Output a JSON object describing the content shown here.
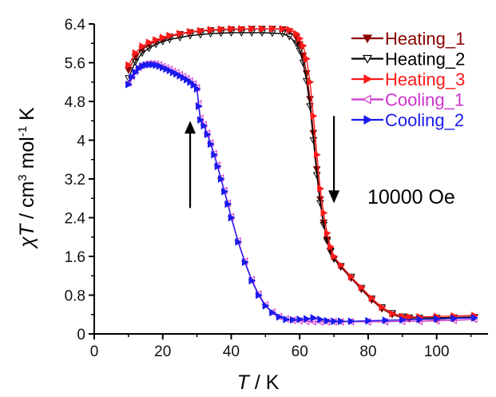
{
  "chart_data": {
    "type": "line",
    "title": "",
    "xlabel_italic": "T",
    "xlabel_rest": " / K",
    "ylabel_chi": "χ",
    "ylabel_T": "T",
    "ylabel_unit": " / cm",
    "ylabel_sup3": "3",
    "ylabel_mol": " mol",
    "ylabel_supm1": "-1",
    "ylabel_K": " K",
    "xlim": [
      0,
      115
    ],
    "ylim": [
      0,
      6.4
    ],
    "xticks": [
      0,
      20,
      40,
      60,
      80,
      100
    ],
    "yticks": [
      "0",
      "0.8",
      "1.6",
      "2.4",
      "3.2",
      "4",
      "4.8",
      "5.6",
      "6.4"
    ],
    "annotation": "10000 Oe",
    "arrows": [
      {
        "direction": "up",
        "x": 28,
        "y_from": 2.6,
        "y_to": 4.4
      },
      {
        "direction": "down",
        "x": 70,
        "y_from": 4.5,
        "y_to": 2.7
      }
    ],
    "legend_position": "top-right",
    "series": [
      {
        "name": "Heating_1",
        "color": "#8b0000",
        "marker": "triangle-down",
        "x": [
          10,
          12,
          14,
          16,
          18,
          20,
          22,
          25,
          28,
          31,
          34,
          37,
          40,
          43,
          46,
          49,
          52,
          55,
          57,
          59,
          60,
          61,
          62,
          63,
          64,
          65,
          66,
          67,
          68,
          69,
          70,
          72,
          75,
          78,
          81,
          84,
          87,
          90,
          92,
          95,
          100,
          105,
          111
        ],
        "y": [
          5.45,
          5.72,
          5.88,
          5.97,
          6.04,
          6.09,
          6.14,
          6.19,
          6.23,
          6.25,
          6.27,
          6.28,
          6.29,
          6.29,
          6.3,
          6.3,
          6.3,
          6.29,
          6.25,
          6.12,
          5.98,
          5.75,
          5.38,
          4.85,
          4.15,
          3.4,
          2.78,
          2.3,
          1.95,
          1.72,
          1.55,
          1.38,
          1.15,
          0.92,
          0.7,
          0.52,
          0.4,
          0.33,
          0.31,
          0.3,
          0.3,
          0.32,
          0.34
        ]
      },
      {
        "name": "Heating_2",
        "color": "#000000",
        "marker": "triangle-down",
        "x": [
          10,
          12,
          14,
          16,
          18,
          20,
          22,
          25,
          28,
          31,
          34,
          37,
          40,
          43,
          46,
          49,
          52,
          55,
          57,
          59,
          60,
          61,
          62,
          63,
          64,
          65,
          66,
          67,
          68,
          69,
          70,
          72,
          75,
          78,
          81,
          84,
          87,
          90,
          92,
          95,
          100,
          105,
          111
        ],
        "y": [
          5.28,
          5.62,
          5.8,
          5.9,
          5.98,
          6.04,
          6.08,
          6.12,
          6.16,
          6.18,
          6.2,
          6.21,
          6.22,
          6.22,
          6.22,
          6.22,
          6.21,
          6.2,
          6.14,
          6.0,
          5.85,
          5.6,
          5.22,
          4.7,
          4.0,
          3.28,
          2.7,
          2.25,
          1.92,
          1.7,
          1.55,
          1.4,
          1.18,
          0.95,
          0.73,
          0.55,
          0.43,
          0.36,
          0.34,
          0.33,
          0.33,
          0.34,
          0.35
        ]
      },
      {
        "name": "Heating_3",
        "color": "#ff1a1a",
        "marker": "triangle-right",
        "x": [
          10,
          12,
          14,
          16,
          18,
          20,
          22,
          25,
          28,
          31,
          34,
          37,
          40,
          43,
          46,
          49,
          52,
          55,
          57,
          59,
          60,
          61,
          62,
          63,
          64,
          65,
          66,
          67,
          68,
          69,
          70,
          72,
          75,
          78,
          81,
          84,
          87,
          90,
          92,
          95,
          100,
          105,
          111
        ],
        "y": [
          5.55,
          5.8,
          5.94,
          6.02,
          6.07,
          6.12,
          6.16,
          6.2,
          6.24,
          6.26,
          6.28,
          6.29,
          6.3,
          6.3,
          6.3,
          6.3,
          6.3,
          6.3,
          6.28,
          6.2,
          6.1,
          5.95,
          5.68,
          5.2,
          4.5,
          3.7,
          3.0,
          2.5,
          2.08,
          1.8,
          1.6,
          1.42,
          1.18,
          0.96,
          0.74,
          0.55,
          0.42,
          0.36,
          0.35,
          0.35,
          0.36,
          0.37,
          0.38
        ]
      },
      {
        "name": "Cooling_1",
        "color": "#cc33cc",
        "marker": "triangle-left",
        "x": [
          10,
          11,
          12,
          13,
          14,
          15,
          16,
          17,
          18,
          19,
          20,
          21,
          22,
          23,
          24,
          25,
          26,
          27,
          28,
          29,
          30,
          30.5,
          31,
          32,
          33,
          34,
          35,
          36,
          37,
          38,
          39,
          40,
          42,
          44,
          46,
          48,
          50,
          52,
          54,
          56,
          58,
          60,
          62,
          64,
          66,
          68,
          70,
          72,
          75,
          80,
          85,
          90,
          95,
          100,
          105,
          111
        ],
        "y": [
          5.18,
          5.32,
          5.42,
          5.5,
          5.55,
          5.57,
          5.58,
          5.58,
          5.57,
          5.55,
          5.52,
          5.49,
          5.46,
          5.42,
          5.39,
          5.35,
          5.31,
          5.27,
          5.22,
          5.16,
          5.08,
          4.75,
          4.45,
          4.32,
          4.14,
          3.94,
          3.72,
          3.48,
          3.22,
          2.96,
          2.7,
          2.42,
          1.92,
          1.5,
          1.12,
          0.82,
          0.6,
          0.45,
          0.36,
          0.31,
          0.28,
          0.27,
          0.26,
          0.25,
          0.25,
          0.25,
          0.25,
          0.25,
          0.25,
          0.25,
          0.25,
          0.26,
          0.26,
          0.27,
          0.28,
          0.3
        ]
      },
      {
        "name": "Cooling_2",
        "color": "#1a1aee",
        "marker": "triangle-right",
        "x": [
          10,
          11,
          12,
          13,
          14,
          15,
          16,
          17,
          18,
          19,
          20,
          21,
          22,
          23,
          24,
          25,
          26,
          27,
          28,
          29,
          30,
          30.5,
          31,
          32,
          33,
          34,
          35,
          36,
          37,
          38,
          39,
          40,
          42,
          44,
          46,
          48,
          50,
          52,
          54,
          56,
          58,
          60,
          62,
          64,
          66,
          68,
          70,
          72,
          75,
          80,
          85,
          90,
          95,
          100,
          105,
          111
        ],
        "y": [
          5.15,
          5.3,
          5.4,
          5.48,
          5.53,
          5.55,
          5.56,
          5.56,
          5.55,
          5.53,
          5.5,
          5.47,
          5.44,
          5.4,
          5.37,
          5.33,
          5.29,
          5.25,
          5.2,
          5.14,
          5.06,
          4.7,
          4.42,
          4.3,
          4.12,
          3.92,
          3.7,
          3.46,
          3.2,
          2.94,
          2.68,
          2.4,
          1.9,
          1.48,
          1.1,
          0.8,
          0.58,
          0.44,
          0.35,
          0.3,
          0.29,
          0.3,
          0.31,
          0.33,
          0.3,
          0.27,
          0.26,
          0.26,
          0.26,
          0.27,
          0.28,
          0.29,
          0.3,
          0.31,
          0.32,
          0.33
        ]
      }
    ]
  }
}
